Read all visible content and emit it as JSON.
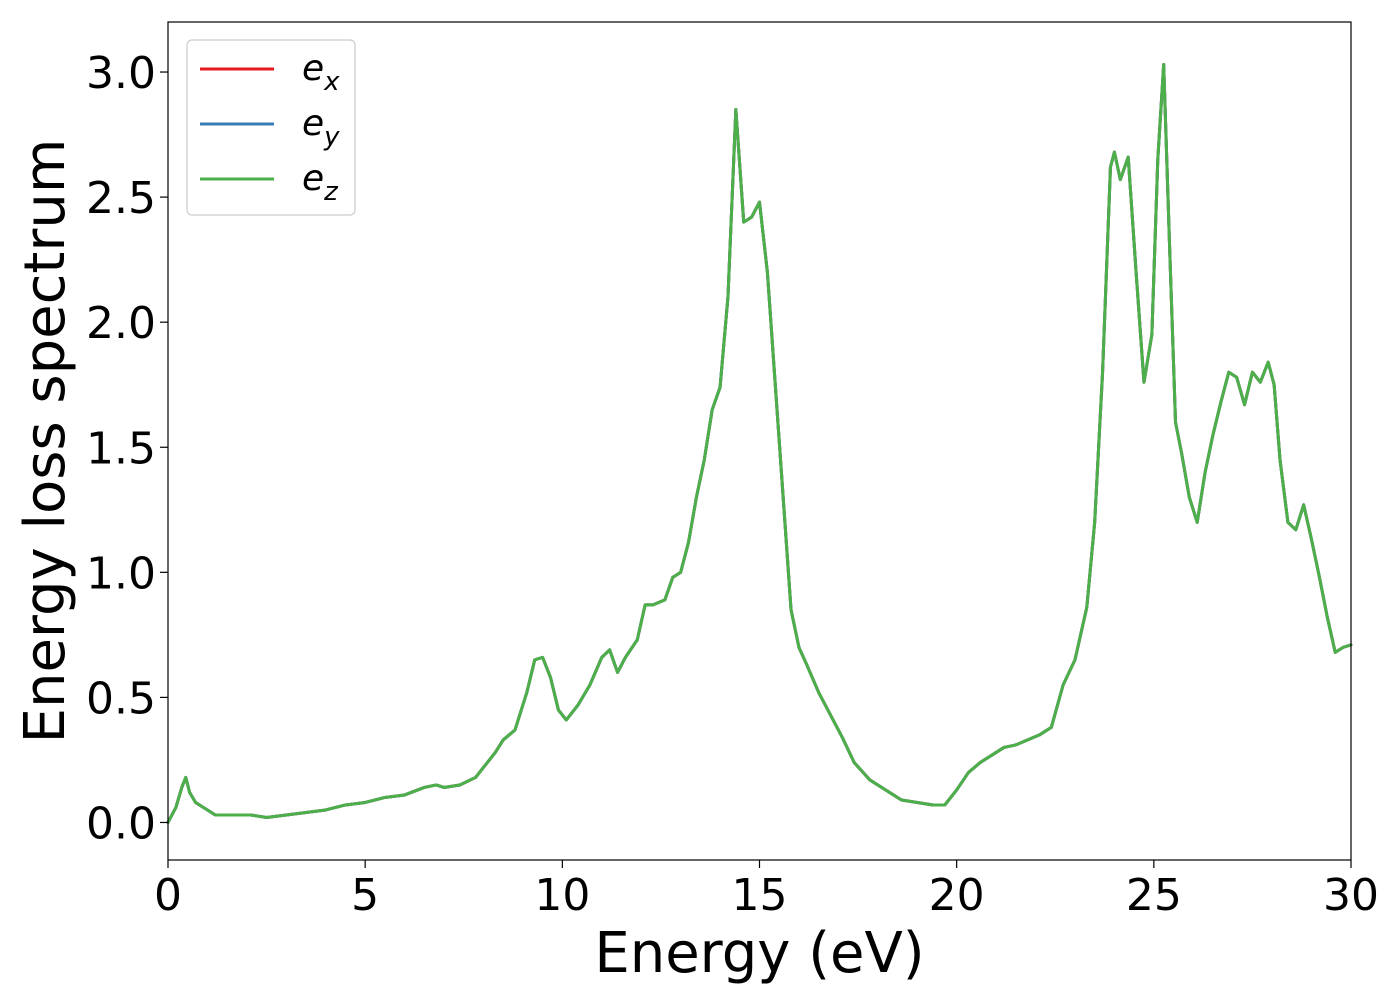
{
  "chart_data": {
    "type": "line",
    "xlabel": "Energy (eV)",
    "ylabel": "Energy loss spectrum",
    "xlim": [
      0,
      30
    ],
    "ylim": [
      -0.15,
      3.2
    ],
    "xticks": [
      0,
      5,
      10,
      15,
      20,
      25,
      30
    ],
    "xtick_labels": [
      "0",
      "5",
      "10",
      "15",
      "20",
      "25",
      "30"
    ],
    "yticks": [
      0.0,
      0.5,
      1.0,
      1.5,
      2.0,
      2.5,
      3.0
    ],
    "ytick_labels": [
      "0.0",
      "0.5",
      "1.0",
      "1.5",
      "2.0",
      "2.5",
      "3.0"
    ],
    "grid": false,
    "legend_position": "top-left",
    "x": [
      0.0,
      0.2,
      0.35,
      0.45,
      0.55,
      0.7,
      0.9,
      1.2,
      1.5,
      1.8,
      2.1,
      2.5,
      3.0,
      3.5,
      4.0,
      4.5,
      5.0,
      5.5,
      6.0,
      6.5,
      6.8,
      7.0,
      7.4,
      7.8,
      8.0,
      8.3,
      8.5,
      8.8,
      9.1,
      9.3,
      9.5,
      9.7,
      9.9,
      10.1,
      10.4,
      10.7,
      11.0,
      11.2,
      11.4,
      11.6,
      11.9,
      12.1,
      12.3,
      12.6,
      12.8,
      13.0,
      13.2,
      13.4,
      13.6,
      13.8,
      14.0,
      14.2,
      14.4,
      14.6,
      14.8,
      15.0,
      15.2,
      15.4,
      15.6,
      15.8,
      16.0,
      16.2,
      16.5,
      16.8,
      17.1,
      17.4,
      17.8,
      18.2,
      18.6,
      19.0,
      19.4,
      19.7,
      20.0,
      20.3,
      20.6,
      20.9,
      21.2,
      21.5,
      21.8,
      22.1,
      22.4,
      22.7,
      23.0,
      23.3,
      23.5,
      23.7,
      23.9,
      24.0,
      24.15,
      24.35,
      24.55,
      24.75,
      24.95,
      25.1,
      25.25,
      25.4,
      25.55,
      25.7,
      25.9,
      26.1,
      26.3,
      26.5,
      26.7,
      26.9,
      27.1,
      27.3,
      27.5,
      27.7,
      27.9,
      28.05,
      28.2,
      28.4,
      28.6,
      28.8,
      29.0,
      29.2,
      29.4,
      29.6,
      29.8,
      30.0
    ],
    "series": [
      {
        "name": "e_x",
        "color": "#e41a1c",
        "y": [
          0.0,
          0.06,
          0.14,
          0.18,
          0.12,
          0.08,
          0.06,
          0.03,
          0.03,
          0.03,
          0.03,
          0.02,
          0.03,
          0.04,
          0.05,
          0.07,
          0.08,
          0.1,
          0.11,
          0.14,
          0.15,
          0.14,
          0.15,
          0.18,
          0.22,
          0.28,
          0.33,
          0.37,
          0.52,
          0.65,
          0.66,
          0.58,
          0.45,
          0.41,
          0.47,
          0.55,
          0.66,
          0.69,
          0.6,
          0.66,
          0.73,
          0.87,
          0.87,
          0.89,
          0.98,
          1.0,
          1.12,
          1.3,
          1.45,
          1.65,
          1.74,
          2.1,
          2.85,
          2.4,
          2.42,
          2.48,
          2.2,
          1.75,
          1.3,
          0.85,
          0.7,
          0.63,
          0.52,
          0.43,
          0.34,
          0.24,
          0.17,
          0.13,
          0.09,
          0.08,
          0.07,
          0.07,
          0.13,
          0.2,
          0.24,
          0.27,
          0.3,
          0.31,
          0.33,
          0.35,
          0.38,
          0.55,
          0.65,
          0.86,
          1.2,
          1.8,
          2.62,
          2.68,
          2.57,
          2.66,
          2.2,
          1.76,
          1.95,
          2.65,
          3.03,
          2.3,
          1.6,
          1.48,
          1.3,
          1.2,
          1.4,
          1.55,
          1.68,
          1.8,
          1.78,
          1.67,
          1.8,
          1.76,
          1.84,
          1.75,
          1.45,
          1.2,
          1.17,
          1.27,
          1.13,
          0.98,
          0.82,
          0.68,
          0.7,
          0.71
        ]
      },
      {
        "name": "e_y",
        "color": "#377eb8",
        "y": [
          0.0,
          0.06,
          0.14,
          0.18,
          0.12,
          0.08,
          0.06,
          0.03,
          0.03,
          0.03,
          0.03,
          0.02,
          0.03,
          0.04,
          0.05,
          0.07,
          0.08,
          0.1,
          0.11,
          0.14,
          0.15,
          0.14,
          0.15,
          0.18,
          0.22,
          0.28,
          0.33,
          0.37,
          0.52,
          0.65,
          0.66,
          0.58,
          0.45,
          0.41,
          0.47,
          0.55,
          0.66,
          0.69,
          0.6,
          0.66,
          0.73,
          0.87,
          0.87,
          0.89,
          0.98,
          1.0,
          1.12,
          1.3,
          1.45,
          1.65,
          1.74,
          2.1,
          2.85,
          2.4,
          2.42,
          2.48,
          2.2,
          1.75,
          1.3,
          0.85,
          0.7,
          0.63,
          0.52,
          0.43,
          0.34,
          0.24,
          0.17,
          0.13,
          0.09,
          0.08,
          0.07,
          0.07,
          0.13,
          0.2,
          0.24,
          0.27,
          0.3,
          0.31,
          0.33,
          0.35,
          0.38,
          0.55,
          0.65,
          0.86,
          1.2,
          1.8,
          2.62,
          2.68,
          2.57,
          2.66,
          2.2,
          1.76,
          1.95,
          2.65,
          3.03,
          2.3,
          1.6,
          1.48,
          1.3,
          1.2,
          1.4,
          1.55,
          1.68,
          1.8,
          1.78,
          1.67,
          1.8,
          1.76,
          1.84,
          1.75,
          1.45,
          1.2,
          1.17,
          1.27,
          1.13,
          0.98,
          0.82,
          0.68,
          0.7,
          0.71
        ]
      },
      {
        "name": "e_z",
        "color": "#4daf4a",
        "y": [
          0.0,
          0.06,
          0.14,
          0.18,
          0.12,
          0.08,
          0.06,
          0.03,
          0.03,
          0.03,
          0.03,
          0.02,
          0.03,
          0.04,
          0.05,
          0.07,
          0.08,
          0.1,
          0.11,
          0.14,
          0.15,
          0.14,
          0.15,
          0.18,
          0.22,
          0.28,
          0.33,
          0.37,
          0.52,
          0.65,
          0.66,
          0.58,
          0.45,
          0.41,
          0.47,
          0.55,
          0.66,
          0.69,
          0.6,
          0.66,
          0.73,
          0.87,
          0.87,
          0.89,
          0.98,
          1.0,
          1.12,
          1.3,
          1.45,
          1.65,
          1.74,
          2.1,
          2.85,
          2.4,
          2.42,
          2.48,
          2.2,
          1.75,
          1.3,
          0.85,
          0.7,
          0.63,
          0.52,
          0.43,
          0.34,
          0.24,
          0.17,
          0.13,
          0.09,
          0.08,
          0.07,
          0.07,
          0.13,
          0.2,
          0.24,
          0.27,
          0.3,
          0.31,
          0.33,
          0.35,
          0.38,
          0.55,
          0.65,
          0.86,
          1.2,
          1.8,
          2.62,
          2.68,
          2.57,
          2.66,
          2.2,
          1.76,
          1.95,
          2.65,
          3.03,
          2.3,
          1.6,
          1.48,
          1.3,
          1.2,
          1.4,
          1.55,
          1.68,
          1.8,
          1.78,
          1.67,
          1.8,
          1.76,
          1.84,
          1.75,
          1.45,
          1.2,
          1.17,
          1.27,
          1.13,
          0.98,
          0.82,
          0.68,
          0.7,
          0.71
        ]
      }
    ],
    "legend": [
      {
        "base": "e",
        "sub": "x"
      },
      {
        "base": "e",
        "sub": "y"
      },
      {
        "base": "e",
        "sub": "z"
      }
    ]
  }
}
